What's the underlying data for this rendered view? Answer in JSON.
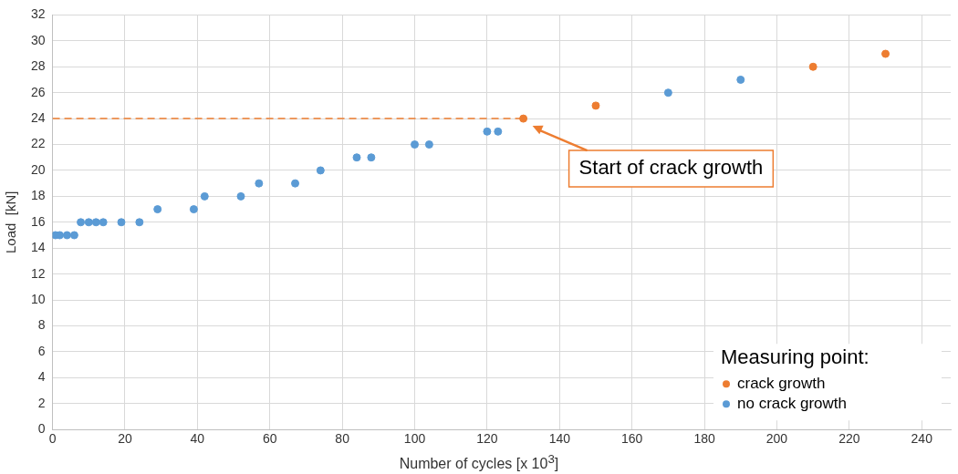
{
  "chart_data": {
    "type": "scatter",
    "xlabel": "Number of cycles [x 10$^{3}$]",
    "ylabel": "Load  [kN]",
    "legend_title": "Measuring point:",
    "legend": "bottom right",
    "grid": true,
    "marker": "circle",
    "xlim": [
      0,
      248
    ],
    "xticks": [
      0,
      20,
      40,
      60,
      80,
      100,
      120,
      140,
      160,
      180,
      200,
      220,
      240
    ],
    "ylim": [
      0,
      32
    ],
    "yticks": [
      0,
      2,
      4,
      6,
      8,
      10,
      12,
      14,
      16,
      18,
      20,
      22,
      24,
      26,
      28,
      30,
      32
    ],
    "series": [
      {
        "name": "crack growth",
        "color": "#ed7d31",
        "x": [
          130,
          150,
          210,
          230
        ],
        "values": [
          24,
          25,
          28,
          29
        ]
      },
      {
        "name": "no crack growth",
        "color": "#5b9bd5",
        "x": [
          0.8,
          2,
          4,
          6,
          7.8,
          10,
          12,
          14,
          19,
          24,
          29,
          39,
          42,
          52,
          57,
          67,
          74,
          84,
          88,
          100,
          104,
          120,
          123,
          170,
          190
        ],
        "values": [
          15,
          15,
          15,
          15,
          16,
          16,
          16,
          16,
          16,
          16,
          17,
          17,
          18,
          18,
          19,
          19,
          20,
          21,
          21,
          22,
          22,
          23,
          23,
          26,
          27
        ]
      },
      {
        "type": "line",
        "color": "#ed7d31",
        "line_style": "dashed",
        "marker": "none",
        "x": [
          0,
          130
        ],
        "values": [
          24,
          24
        ]
      }
    ],
    "annotations": [
      "Start of crack growth"
    ]
  }
}
